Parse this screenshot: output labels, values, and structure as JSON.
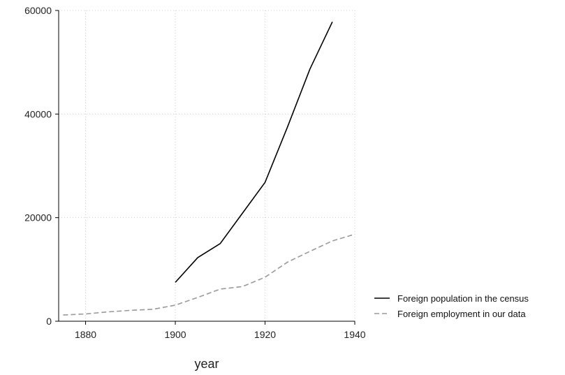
{
  "chart_data": {
    "type": "line",
    "title": "",
    "xlabel": "year",
    "ylabel": "",
    "xlim": [
      1874,
      1940
    ],
    "ylim": [
      0,
      60000
    ],
    "x_ticks": [
      1880,
      1900,
      1920,
      1940
    ],
    "y_ticks": [
      0,
      20000,
      40000,
      60000
    ],
    "x_tick_labels": [
      "1880",
      "1900",
      "1920",
      "1940"
    ],
    "y_tick_labels": [
      "0",
      "20000",
      "40000",
      "60000"
    ],
    "grid": true,
    "legend_position": "right",
    "series": [
      {
        "name": "Foreign population in the census",
        "style": "solid",
        "color": "#000000",
        "x": [
          1900,
          1905,
          1910,
          1915,
          1920,
          1925,
          1930,
          1935
        ],
        "y": [
          7500,
          12300,
          15000,
          20900,
          26800,
          37500,
          48700,
          57800
        ]
      },
      {
        "name": "Foreign employment in our data",
        "style": "dashed",
        "color": "#999999",
        "x": [
          1875,
          1880,
          1885,
          1890,
          1895,
          1900,
          1905,
          1910,
          1915,
          1920,
          1925,
          1930,
          1935,
          1940
        ],
        "y": [
          1200,
          1400,
          1800,
          2100,
          2300,
          3100,
          4600,
          6200,
          6700,
          8500,
          11400,
          13500,
          15500,
          16800
        ]
      }
    ]
  }
}
